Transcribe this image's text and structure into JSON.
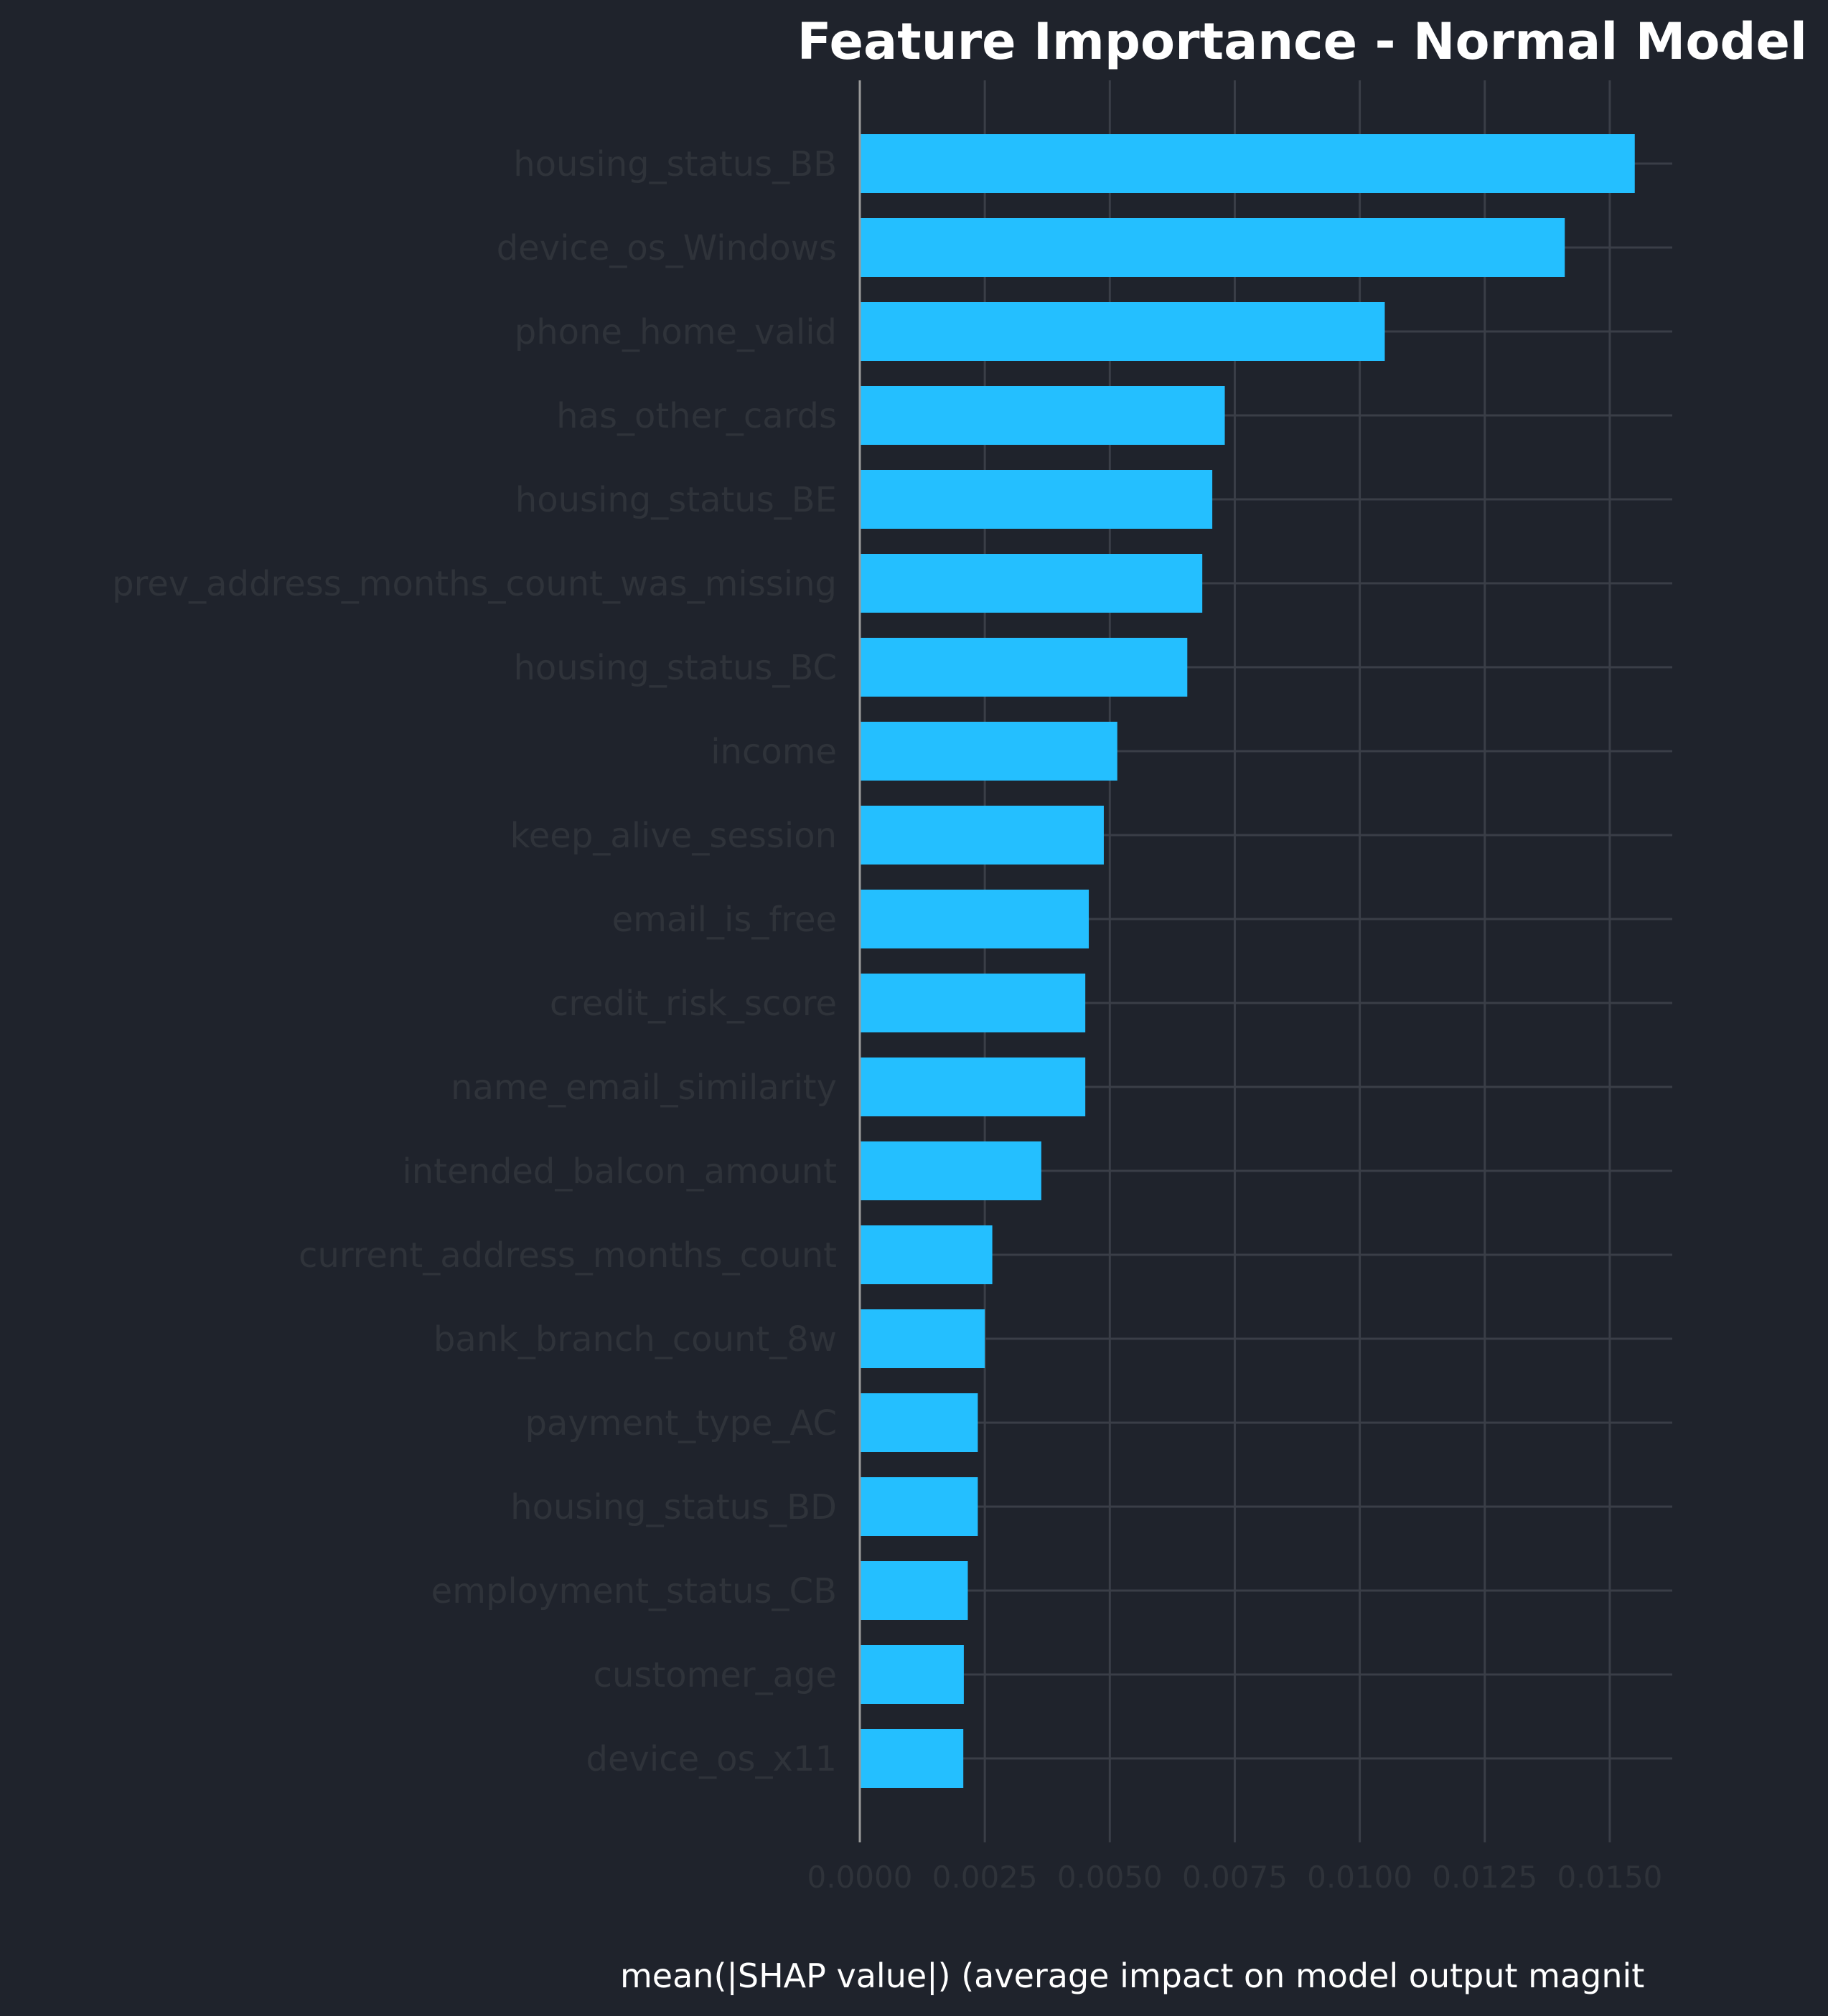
{
  "chart_data": {
    "type": "bar",
    "orientation": "horizontal",
    "title": "Feature Importance - Normal Model",
    "xlabel": "mean(|SHAP value|) (average impact on model output magnit",
    "ylabel": "",
    "categories": [
      "housing_status_BB",
      "device_os_Windows",
      "phone_home_valid",
      "has_other_cards",
      "housing_status_BE",
      "prev_address_months_count_was_missing",
      "housing_status_BC",
      "income",
      "keep_alive_session",
      "email_is_free",
      "credit_risk_score",
      "name_email_similarity",
      "intended_balcon_amount",
      "current_address_months_count",
      "bank_branch_count_8w",
      "payment_type_AC",
      "housing_status_BD",
      "employment_status_CB",
      "customer_age",
      "device_os_x11"
    ],
    "values": [
      0.0155,
      0.0141,
      0.0105,
      0.0073,
      0.00705,
      0.00685,
      0.00655,
      0.00515,
      0.00488,
      0.00458,
      0.00451,
      0.00451,
      0.00363,
      0.00265,
      0.0025,
      0.00236,
      0.00236,
      0.00216,
      0.00208,
      0.00207
    ],
    "xlim": [
      0.0,
      0.01625
    ],
    "xticks": [
      "0.0000",
      "0.0025",
      "0.0050",
      "0.0075",
      "0.0100",
      "0.0125",
      "0.0150"
    ],
    "grid": true,
    "colors": {
      "background": "#1f232c",
      "bar": "#24bfff",
      "grid": "#3a3e47",
      "axis": "#9a9a9a",
      "title": "#ffffff",
      "tick_text": "#2f333a"
    }
  }
}
